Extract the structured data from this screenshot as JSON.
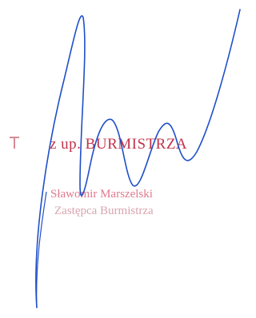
{
  "stamp": {
    "authority": "z up. BURMISTRZA",
    "name": "Sławomir Marszelski",
    "position": "Zastępca Burmistrza"
  }
}
